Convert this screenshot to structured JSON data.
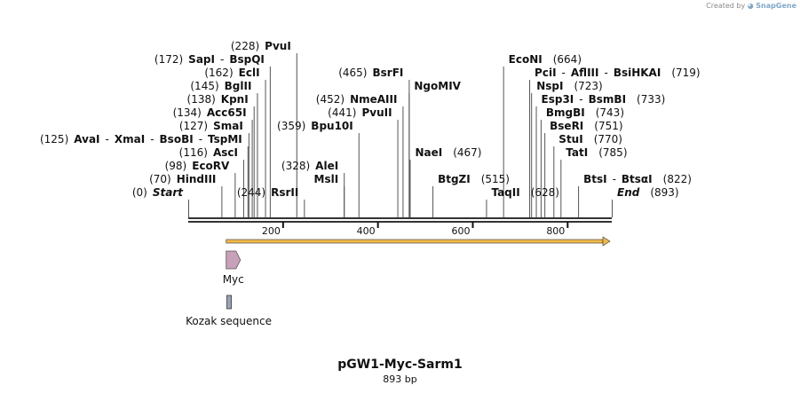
{
  "credit": {
    "prefix": "Created by",
    "brand": "SnapGene",
    "icon": "snapgene-logo-icon"
  },
  "map": {
    "title": "pGW1-Myc-Sarm1",
    "length_label": "893 bp",
    "length": 893,
    "colors": {
      "backbone": "#333333",
      "orf": "#f0b94a",
      "myc": "#c8a0b8",
      "kozak": "#9aa3b5"
    }
  },
  "ticks": [
    {
      "value": 200,
      "label": "200"
    },
    {
      "value": 400,
      "label": "400"
    },
    {
      "value": 600,
      "label": "600"
    },
    {
      "value": 800,
      "label": "800"
    }
  ],
  "sites": [
    {
      "line": 0,
      "label_row": 9,
      "parts": [
        [
          "pos",
          "(0)"
        ],
        [
          "ital",
          "Start"
        ]
      ]
    },
    {
      "line": 70,
      "label_row": 8,
      "parts": [
        [
          "pos",
          "(70)"
        ],
        [
          "site",
          "HindIII"
        ]
      ]
    },
    {
      "line": 98,
      "label_row": 7,
      "parts": [
        [
          "pos",
          "(98)"
        ],
        [
          "site",
          "EcoRV"
        ]
      ]
    },
    {
      "line": 116,
      "label_row": 6,
      "parts": [
        [
          "pos",
          "(116)"
        ],
        [
          "site",
          "AscI"
        ]
      ]
    },
    {
      "line": 125,
      "label_row": 5,
      "parts": [
        [
          "pos",
          "(125)"
        ],
        [
          "site",
          "AvaI"
        ],
        [
          "pos",
          "-"
        ],
        [
          "site",
          "XmaI"
        ],
        [
          "pos",
          "-"
        ],
        [
          "site",
          "BsoBI"
        ],
        [
          "pos",
          "-"
        ],
        [
          "site",
          "TspMI"
        ]
      ]
    },
    {
      "line": 127,
      "label_row": 4,
      "parts": [
        [
          "pos",
          "(127)"
        ],
        [
          "site",
          "SmaI"
        ]
      ]
    },
    {
      "line": 134,
      "label_row": 3,
      "parts": [
        [
          "pos",
          "(134)"
        ],
        [
          "site",
          "Acc65I"
        ]
      ]
    },
    {
      "line": 138,
      "label_row": 2,
      "parts": [
        [
          "pos",
          "(138)"
        ],
        [
          "site",
          "KpnI"
        ]
      ]
    },
    {
      "line": 145,
      "label_row": 1,
      "parts": [
        [
          "pos",
          "(145)"
        ],
        [
          "site",
          "BglII"
        ]
      ]
    },
    {
      "line": 162,
      "label_row": 0,
      "parts": [
        [
          "pos",
          "(162)"
        ],
        [
          "site",
          "EclI"
        ]
      ]
    },
    {
      "line": 172,
      "label_row": -1,
      "parts": [
        [
          "pos",
          "(172)"
        ],
        [
          "site",
          "SapI"
        ],
        [
          "pos",
          "-"
        ],
        [
          "site",
          "BspQI"
        ]
      ]
    },
    {
      "line": 228,
      "label_row": -2,
      "parts": [
        [
          "pos",
          "(228)"
        ],
        [
          "site",
          "PvuI"
        ]
      ]
    },
    {
      "line": 244,
      "label_row": 9,
      "parts": [
        [
          "pos",
          "(244)"
        ],
        [
          "site",
          "RsrII"
        ]
      ]
    },
    {
      "line": 328,
      "label_row": 7,
      "parts": [
        [
          "pos",
          "(328)"
        ],
        [
          "site",
          "AleI"
        ]
      ]
    },
    {
      "line": 328,
      "label_row": 8,
      "parts": [
        [
          "site",
          "MslI"
        ]
      ]
    },
    {
      "line": 359,
      "label_row": 4,
      "parts": [
        [
          "pos",
          "(359)"
        ],
        [
          "site",
          "Bpu10I"
        ]
      ]
    },
    {
      "line": 441,
      "label_row": 3,
      "parts": [
        [
          "pos",
          "(441)"
        ],
        [
          "site",
          "PvuII"
        ]
      ]
    },
    {
      "line": 452,
      "label_row": 2,
      "parts": [
        [
          "pos",
          "(452)"
        ],
        [
          "site",
          "NmeAIII"
        ]
      ]
    },
    {
      "line": 465,
      "label_row": 1,
      "parts": [
        [
          "site",
          "NgoMIV"
        ]
      ]
    },
    {
      "line": 465,
      "label_row": 0,
      "parts": [
        [
          "pos",
          "(465)"
        ],
        [
          "site",
          "BsrFI"
        ]
      ]
    },
    {
      "line": 467,
      "label_row": 6,
      "parts": [
        [
          "site",
          "NaeI"
        ],
        [
          "pos",
          "(467)"
        ]
      ]
    },
    {
      "line": 515,
      "label_row": 8,
      "parts": [
        [
          "site",
          "BtgZI"
        ],
        [
          "pos",
          "(515)"
        ]
      ]
    },
    {
      "line": 628,
      "label_row": 9,
      "parts": [
        [
          "site",
          "TaqII"
        ],
        [
          "pos",
          "(628)"
        ]
      ]
    },
    {
      "line": 664,
      "label_row": -1,
      "parts": [
        [
          "site",
          "EcoNI"
        ],
        [
          "pos",
          "(664)"
        ]
      ]
    },
    {
      "line": 719,
      "label_row": 0,
      "parts": [
        [
          "site",
          "PciI"
        ],
        [
          "pos",
          "-"
        ],
        [
          "site",
          "AflIII"
        ],
        [
          "pos",
          "-"
        ],
        [
          "site",
          "BsiHKAI"
        ],
        [
          "pos",
          "(719)"
        ]
      ]
    },
    {
      "line": 723,
      "label_row": 1,
      "parts": [
        [
          "site",
          "NspI"
        ],
        [
          "pos",
          "(723)"
        ]
      ]
    },
    {
      "line": 733,
      "label_row": 2,
      "parts": [
        [
          "site",
          "Esp3I"
        ],
        [
          "pos",
          "-"
        ],
        [
          "site",
          "BsmBI"
        ],
        [
          "pos",
          "(733)"
        ]
      ]
    },
    {
      "line": 743,
      "label_row": 3,
      "parts": [
        [
          "site",
          "BmgBI"
        ],
        [
          "pos",
          "(743)"
        ]
      ]
    },
    {
      "line": 751,
      "label_row": 4,
      "parts": [
        [
          "site",
          "BseRI"
        ],
        [
          "pos",
          "(751)"
        ]
      ]
    },
    {
      "line": 770,
      "label_row": 5,
      "parts": [
        [
          "site",
          "StuI"
        ],
        [
          "pos",
          "(770)"
        ]
      ]
    },
    {
      "line": 785,
      "label_row": 6,
      "parts": [
        [
          "site",
          "TatI"
        ],
        [
          "pos",
          "(785)"
        ]
      ]
    },
    {
      "line": 822,
      "label_row": 8,
      "parts": [
        [
          "site",
          "BtsI"
        ],
        [
          "pos",
          "-"
        ],
        [
          "site",
          "BtsαI"
        ],
        [
          "pos",
          "(822)"
        ]
      ]
    },
    {
      "line": 893,
      "label_row": 9,
      "parts": [
        [
          "ital",
          "End"
        ],
        [
          "pos",
          "(893)"
        ]
      ]
    }
  ],
  "features": [
    {
      "name": "Myc",
      "start": 80,
      "end": 110,
      "kind": "arrow"
    },
    {
      "name": "Kozak sequence",
      "start": 74,
      "end": 82,
      "kind": "box"
    }
  ],
  "orf": {
    "start": 80,
    "end": 893
  }
}
